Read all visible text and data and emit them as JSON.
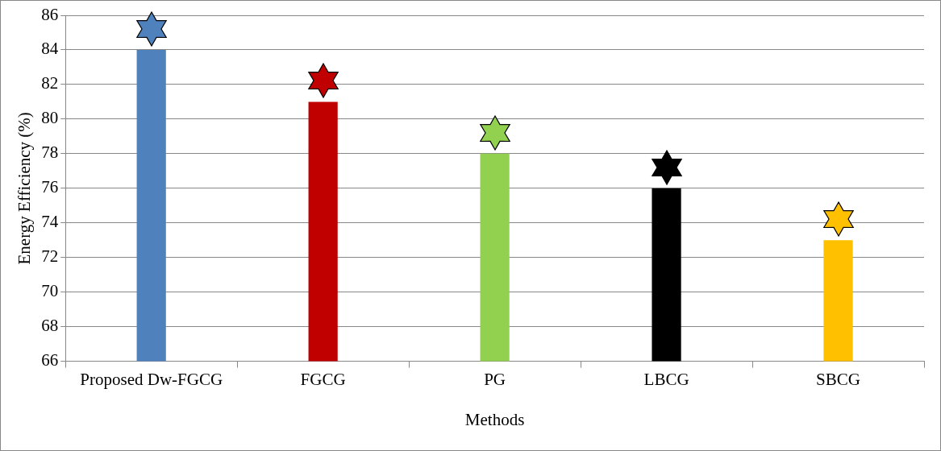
{
  "chart_data": {
    "type": "bar",
    "xlabel": "Methods",
    "ylabel": "Energy Efficiency (%)",
    "categories": [
      "Proposed Dw-FGCG",
      "FGCG",
      "PG",
      "LBCG",
      "SBCG"
    ],
    "values": [
      84,
      81,
      78,
      76,
      73
    ],
    "colors": [
      "#4f81bd",
      "#c00000",
      "#92d050",
      "#000000",
      "#ffc000"
    ],
    "ylim": [
      66,
      86
    ],
    "yticks": [
      66,
      68,
      70,
      72,
      74,
      76,
      78,
      80,
      82,
      84,
      86
    ],
    "grid": "y",
    "legend": false
  }
}
